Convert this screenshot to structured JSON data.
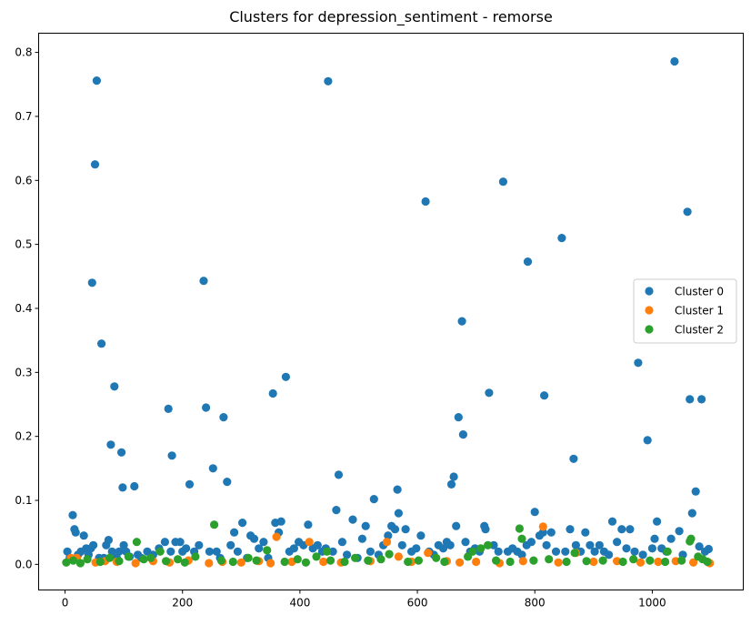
{
  "chart_data": {
    "type": "scatter",
    "title": "Clusters for depression_sentiment - remorse",
    "xlabel": "",
    "ylabel": "",
    "xlim": [
      -45,
      1155
    ],
    "ylim": [
      -0.04,
      0.83
    ],
    "x_ticks": [
      0,
      200,
      400,
      600,
      800,
      1000
    ],
    "y_ticks": [
      0.0,
      0.1,
      0.2,
      0.3,
      0.4,
      0.5,
      0.6,
      0.7,
      0.8
    ],
    "x_tick_labels": [
      "0",
      "200",
      "400",
      "600",
      "800",
      "1000"
    ],
    "y_tick_labels": [
      "0.0",
      "0.1",
      "0.2",
      "0.3",
      "0.4",
      "0.5",
      "0.6",
      "0.7",
      "0.8"
    ],
    "grid": false,
    "legend": "center-right",
    "series": [
      {
        "name": "Cluster 0",
        "color": "#1f77b4",
        "points": [
          [
            4,
            0.02
          ],
          [
            8,
            0.01
          ],
          [
            13,
            0.077
          ],
          [
            16,
            0.055
          ],
          [
            18,
            0.05
          ],
          [
            22,
            0.015
          ],
          [
            27,
            0.02
          ],
          [
            32,
            0.045
          ],
          [
            36,
            0.025
          ],
          [
            40,
            0.015
          ],
          [
            44,
            0.025
          ],
          [
            46,
            0.44
          ],
          [
            48,
            0.03
          ],
          [
            51,
            0.625
          ],
          [
            54,
            0.756
          ],
          [
            58,
            0.01
          ],
          [
            62,
            0.345
          ],
          [
            66,
            0.01
          ],
          [
            70,
            0.03
          ],
          [
            74,
            0.038
          ],
          [
            78,
            0.187
          ],
          [
            80,
            0.02
          ],
          [
            84,
            0.278
          ],
          [
            88,
            0.01
          ],
          [
            92,
            0.02
          ],
          [
            96,
            0.175
          ],
          [
            98,
            0.12
          ],
          [
            100,
            0.03
          ],
          [
            104,
            0.02
          ],
          [
            110,
            0.012
          ],
          [
            118,
            0.122
          ],
          [
            124,
            0.015
          ],
          [
            130,
            0.01
          ],
          [
            140,
            0.02
          ],
          [
            150,
            0.015
          ],
          [
            160,
            0.025
          ],
          [
            170,
            0.035
          ],
          [
            176,
            0.243
          ],
          [
            180,
            0.02
          ],
          [
            182,
            0.17
          ],
          [
            188,
            0.035
          ],
          [
            196,
            0.035
          ],
          [
            200,
            0.02
          ],
          [
            206,
            0.025
          ],
          [
            212,
            0.125
          ],
          [
            220,
            0.02
          ],
          [
            228,
            0.03
          ],
          [
            236,
            0.443
          ],
          [
            240,
            0.245
          ],
          [
            246,
            0.02
          ],
          [
            252,
            0.15
          ],
          [
            258,
            0.02
          ],
          [
            264,
            0.01
          ],
          [
            270,
            0.23
          ],
          [
            276,
            0.129
          ],
          [
            282,
            0.03
          ],
          [
            288,
            0.05
          ],
          [
            294,
            0.02
          ],
          [
            302,
            0.065
          ],
          [
            310,
            0.01
          ],
          [
            316,
            0.045
          ],
          [
            322,
            0.04
          ],
          [
            330,
            0.025
          ],
          [
            338,
            0.035
          ],
          [
            346,
            0.01
          ],
          [
            354,
            0.267
          ],
          [
            358,
            0.065
          ],
          [
            364,
            0.05
          ],
          [
            368,
            0.067
          ],
          [
            376,
            0.293
          ],
          [
            382,
            0.02
          ],
          [
            390,
            0.025
          ],
          [
            398,
            0.035
          ],
          [
            406,
            0.03
          ],
          [
            414,
            0.062
          ],
          [
            422,
            0.025
          ],
          [
            430,
            0.03
          ],
          [
            438,
            0.02
          ],
          [
            444,
            0.025
          ],
          [
            448,
            0.755
          ],
          [
            456,
            0.02
          ],
          [
            462,
            0.085
          ],
          [
            466,
            0.14
          ],
          [
            472,
            0.035
          ],
          [
            480,
            0.015
          ],
          [
            490,
            0.07
          ],
          [
            498,
            0.01
          ],
          [
            506,
            0.04
          ],
          [
            512,
            0.06
          ],
          [
            520,
            0.02
          ],
          [
            526,
            0.102
          ],
          [
            534,
            0.015
          ],
          [
            542,
            0.03
          ],
          [
            550,
            0.045
          ],
          [
            556,
            0.06
          ],
          [
            562,
            0.055
          ],
          [
            566,
            0.117
          ],
          [
            568,
            0.08
          ],
          [
            574,
            0.03
          ],
          [
            580,
            0.055
          ],
          [
            590,
            0.02
          ],
          [
            598,
            0.025
          ],
          [
            606,
            0.045
          ],
          [
            614,
            0.567
          ],
          [
            620,
            0.02
          ],
          [
            628,
            0.015
          ],
          [
            636,
            0.03
          ],
          [
            644,
            0.025
          ],
          [
            650,
            0.035
          ],
          [
            656,
            0.03
          ],
          [
            658,
            0.125
          ],
          [
            662,
            0.137
          ],
          [
            666,
            0.06
          ],
          [
            670,
            0.23
          ],
          [
            676,
            0.38
          ],
          [
            678,
            0.203
          ],
          [
            682,
            0.035
          ],
          [
            690,
            0.02
          ],
          [
            698,
            0.025
          ],
          [
            706,
            0.02
          ],
          [
            714,
            0.06
          ],
          [
            716,
            0.055
          ],
          [
            722,
            0.268
          ],
          [
            730,
            0.03
          ],
          [
            738,
            0.02
          ],
          [
            746,
            0.598
          ],
          [
            754,
            0.02
          ],
          [
            762,
            0.025
          ],
          [
            770,
            0.02
          ],
          [
            778,
            0.015
          ],
          [
            786,
            0.03
          ],
          [
            788,
            0.473
          ],
          [
            794,
            0.035
          ],
          [
            800,
            0.082
          ],
          [
            808,
            0.045
          ],
          [
            814,
            0.05
          ],
          [
            816,
            0.264
          ],
          [
            820,
            0.03
          ],
          [
            828,
            0.05
          ],
          [
            836,
            0.02
          ],
          [
            846,
            0.51
          ],
          [
            852,
            0.02
          ],
          [
            860,
            0.055
          ],
          [
            866,
            0.165
          ],
          [
            870,
            0.03
          ],
          [
            878,
            0.02
          ],
          [
            886,
            0.05
          ],
          [
            894,
            0.03
          ],
          [
            902,
            0.02
          ],
          [
            910,
            0.03
          ],
          [
            918,
            0.02
          ],
          [
            926,
            0.015
          ],
          [
            932,
            0.067
          ],
          [
            940,
            0.035
          ],
          [
            948,
            0.055
          ],
          [
            956,
            0.025
          ],
          [
            962,
            0.055
          ],
          [
            970,
            0.02
          ],
          [
            976,
            0.315
          ],
          [
            984,
            0.015
          ],
          [
            992,
            0.194
          ],
          [
            1000,
            0.025
          ],
          [
            1004,
            0.04
          ],
          [
            1008,
            0.067
          ],
          [
            1016,
            0.025
          ],
          [
            1024,
            0.02
          ],
          [
            1032,
            0.04
          ],
          [
            1038,
            0.786
          ],
          [
            1046,
            0.052
          ],
          [
            1052,
            0.015
          ],
          [
            1060,
            0.551
          ],
          [
            1064,
            0.258
          ],
          [
            1068,
            0.08
          ],
          [
            1074,
            0.114
          ],
          [
            1080,
            0.028
          ],
          [
            1084,
            0.258
          ],
          [
            1090,
            0.02
          ],
          [
            1096,
            0.024
          ]
        ]
      },
      {
        "name": "Cluster 1",
        "color": "#ff7f0e",
        "points": [
          [
            10,
            0.01
          ],
          [
            20,
            0.01
          ],
          [
            52,
            0.003
          ],
          [
            68,
            0.005
          ],
          [
            88,
            0.004
          ],
          [
            120,
            0.002
          ],
          [
            150,
            0.005
          ],
          [
            178,
            0.003
          ],
          [
            210,
            0.006
          ],
          [
            245,
            0.002
          ],
          [
            268,
            0.004
          ],
          [
            300,
            0.003
          ],
          [
            330,
            0.005
          ],
          [
            350,
            0.002
          ],
          [
            360,
            0.043
          ],
          [
            386,
            0.004
          ],
          [
            416,
            0.035
          ],
          [
            440,
            0.004
          ],
          [
            470,
            0.003
          ],
          [
            520,
            0.005
          ],
          [
            548,
            0.035
          ],
          [
            568,
            0.012
          ],
          [
            590,
            0.004
          ],
          [
            618,
            0.018
          ],
          [
            650,
            0.005
          ],
          [
            672,
            0.003
          ],
          [
            700,
            0.004
          ],
          [
            740,
            0.002
          ],
          [
            780,
            0.005
          ],
          [
            814,
            0.059
          ],
          [
            840,
            0.003
          ],
          [
            870,
            0.018
          ],
          [
            900,
            0.004
          ],
          [
            940,
            0.005
          ],
          [
            980,
            0.003
          ],
          [
            1010,
            0.004
          ],
          [
            1040,
            0.005
          ],
          [
            1070,
            0.003
          ],
          [
            1098,
            0.002
          ]
        ]
      },
      {
        "name": "Cluster 2",
        "color": "#2ca02c",
        "points": [
          [
            2,
            0.003
          ],
          [
            14,
            0.006
          ],
          [
            26,
            0.002
          ],
          [
            38,
            0.008
          ],
          [
            60,
            0.004
          ],
          [
            76,
            0.01
          ],
          [
            92,
            0.005
          ],
          [
            108,
            0.012
          ],
          [
            122,
            0.035
          ],
          [
            134,
            0.008
          ],
          [
            146,
            0.01
          ],
          [
            162,
            0.02
          ],
          [
            172,
            0.005
          ],
          [
            192,
            0.008
          ],
          [
            204,
            0.003
          ],
          [
            222,
            0.012
          ],
          [
            254,
            0.062
          ],
          [
            266,
            0.006
          ],
          [
            286,
            0.004
          ],
          [
            312,
            0.01
          ],
          [
            326,
            0.006
          ],
          [
            344,
            0.022
          ],
          [
            374,
            0.004
          ],
          [
            396,
            0.008
          ],
          [
            410,
            0.003
          ],
          [
            428,
            0.012
          ],
          [
            446,
            0.02
          ],
          [
            452,
            0.006
          ],
          [
            476,
            0.004
          ],
          [
            494,
            0.01
          ],
          [
            516,
            0.006
          ],
          [
            538,
            0.008
          ],
          [
            552,
            0.016
          ],
          [
            584,
            0.004
          ],
          [
            602,
            0.006
          ],
          [
            632,
            0.01
          ],
          [
            646,
            0.004
          ],
          [
            686,
            0.012
          ],
          [
            694,
            0.02
          ],
          [
            708,
            0.025
          ],
          [
            720,
            0.03
          ],
          [
            734,
            0.006
          ],
          [
            758,
            0.004
          ],
          [
            774,
            0.056
          ],
          [
            778,
            0.04
          ],
          [
            798,
            0.006
          ],
          [
            824,
            0.008
          ],
          [
            854,
            0.004
          ],
          [
            868,
            0.018
          ],
          [
            888,
            0.005
          ],
          [
            916,
            0.006
          ],
          [
            950,
            0.004
          ],
          [
            968,
            0.008
          ],
          [
            996,
            0.006
          ],
          [
            1022,
            0.004
          ],
          [
            1026,
            0.02
          ],
          [
            1050,
            0.006
          ],
          [
            1064,
            0.036
          ],
          [
            1066,
            0.04
          ],
          [
            1078,
            0.012
          ],
          [
            1086,
            0.008
          ],
          [
            1094,
            0.004
          ]
        ]
      }
    ]
  }
}
